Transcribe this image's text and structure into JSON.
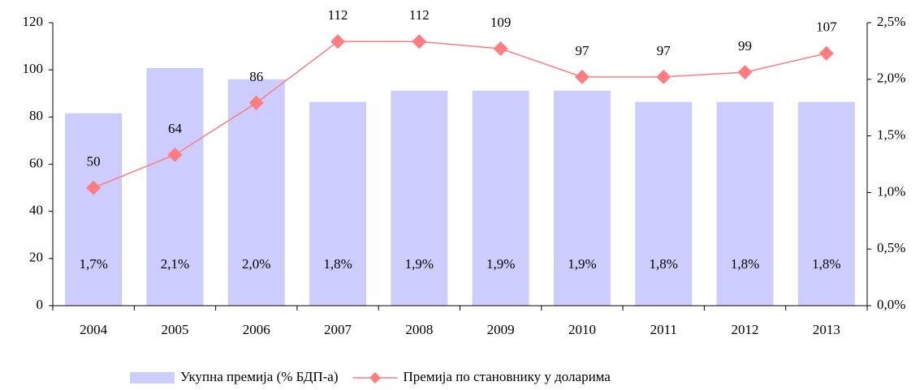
{
  "chart_data": {
    "type": "bar_line",
    "categories": [
      "2004",
      "2005",
      "2006",
      "2007",
      "2008",
      "2009",
      "2010",
      "2011",
      "2012",
      "2013"
    ],
    "series": [
      {
        "name": "Укупна премија (% БДП-а)",
        "type": "bar",
        "axis": "y2",
        "color": "#ccccff",
        "values": [
          1.7,
          2.1,
          2.0,
          1.8,
          1.9,
          1.9,
          1.9,
          1.8,
          1.8,
          1.8
        ],
        "value_labels": [
          "1,7%",
          "2,1%",
          "2,0%",
          "1,8%",
          "1,9%",
          "1,9%",
          "1,9%",
          "1,8%",
          "1,8%",
          "1,8%"
        ]
      },
      {
        "name": "Премија по становнику у доларима",
        "type": "line",
        "axis": "y",
        "color": "#ff7c80",
        "values": [
          50,
          64,
          86,
          112,
          112,
          109,
          97,
          97,
          99,
          107
        ]
      }
    ],
    "ylim": [
      0,
      120
    ],
    "yticks": [
      0,
      20,
      40,
      60,
      80,
      100,
      120
    ],
    "y2lim": [
      0,
      2.5
    ],
    "y2ticks": [
      {
        "value": 0,
        "label": "0,0%"
      },
      {
        "value": 0.5,
        "label": "0,5%"
      },
      {
        "value": 1,
        "label": "1,0%"
      },
      {
        "value": 1.5,
        "label": "1,5%"
      },
      {
        "value": 2,
        "label": "2,0%"
      },
      {
        "value": 2.5,
        "label": "2,5%"
      }
    ],
    "legend": "bottom"
  }
}
